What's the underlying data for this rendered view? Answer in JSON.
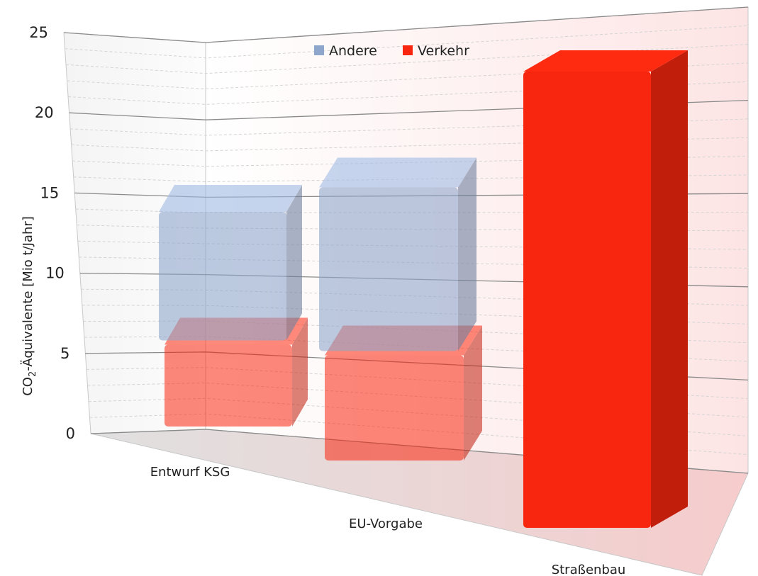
{
  "chart_data": {
    "type": "bar",
    "stacked": true,
    "style": "3d",
    "categories": [
      "Entwurf KSG",
      "EU-Vorgabe",
      "Straßenbau"
    ],
    "series": [
      {
        "name": "Verkehr",
        "values": [
          7,
          9,
          23
        ]
      },
      {
        "name": "Andere",
        "values": [
          11,
          14,
          0
        ]
      }
    ],
    "ylabel": {
      "prefix": "CO",
      "subscript": "2",
      "suffix": "-Äquivalente [Mio t/Jahr]"
    },
    "yticks": [
      "0",
      "5",
      "10",
      "15",
      "20",
      "25"
    ],
    "ylim": [
      0,
      25
    ],
    "grid": true,
    "legend": "top-center",
    "colors": {
      "Verkehr": "#f8260f",
      "Andere": "#8fa6cc"
    }
  }
}
